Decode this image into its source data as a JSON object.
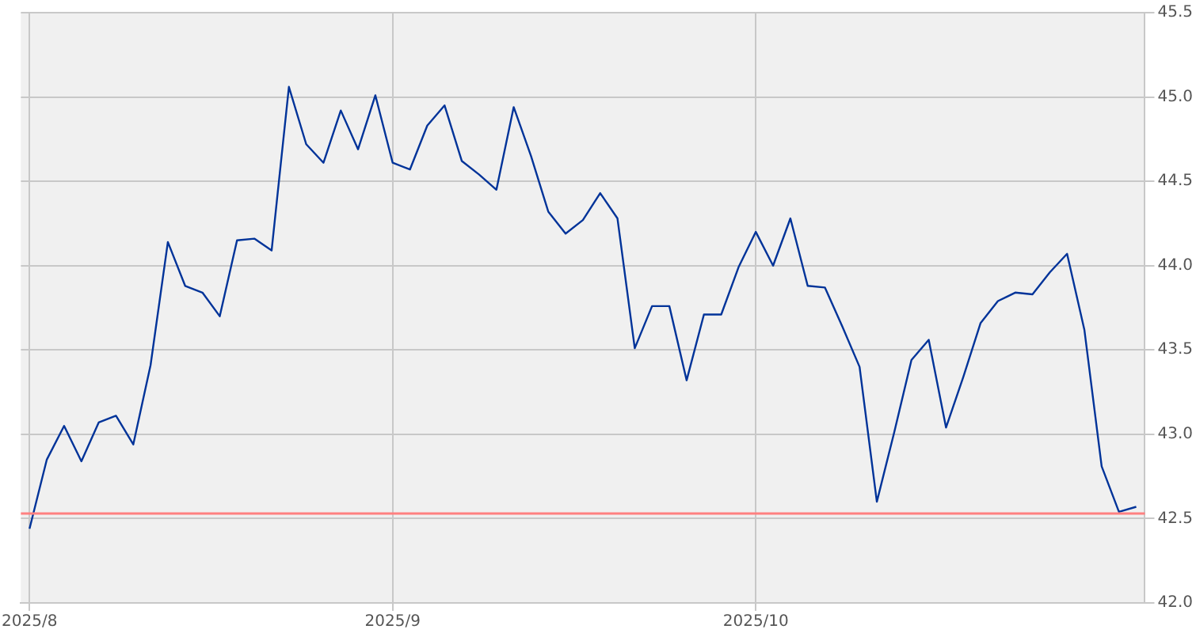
{
  "chart_data": {
    "type": "line",
    "categories": [
      "2025/8",
      null,
      null,
      null,
      null,
      null,
      null,
      null,
      null,
      null,
      null,
      null,
      null,
      null,
      null,
      null,
      null,
      null,
      null,
      null,
      null,
      "2025/9",
      null,
      null,
      null,
      null,
      null,
      null,
      null,
      null,
      null,
      null,
      null,
      null,
      null,
      null,
      null,
      null,
      null,
      null,
      null,
      null,
      "2025/10",
      null,
      null,
      null,
      null,
      null,
      null,
      null,
      null,
      null,
      null,
      null,
      null,
      null,
      null,
      null,
      null,
      null,
      null,
      null,
      null,
      null,
      null
    ],
    "series": [
      {
        "color": "#003399",
        "values": [
          42.44,
          42.85,
          43.05,
          42.84,
          43.07,
          43.11,
          42.94,
          43.41,
          44.14,
          43.88,
          43.84,
          43.7,
          44.15,
          44.16,
          44.09,
          45.06,
          44.72,
          44.61,
          44.92,
          44.69,
          45.01,
          44.61,
          44.57,
          44.83,
          44.95,
          44.62,
          44.54,
          44.45,
          44.94,
          44.65,
          44.32,
          44.19,
          44.27,
          44.43,
          44.28,
          43.51,
          43.76,
          43.76,
          43.32,
          43.71,
          43.71,
          43.99,
          44.2,
          44.0,
          44.28,
          43.88,
          43.87,
          43.64,
          43.4,
          42.6,
          43.01,
          43.44,
          43.56,
          43.04,
          43.34,
          43.66,
          43.79,
          43.84,
          43.83,
          43.96,
          44.07,
          43.62,
          42.81,
          42.54,
          42.57
        ]
      }
    ],
    "ylim": [
      42.0,
      45.5
    ],
    "yticks": [
      {
        "value": 42,
        "label": "42.0"
      },
      {
        "value": 42.5,
        "label": "42.5"
      },
      {
        "value": 43,
        "label": "43.0"
      },
      {
        "value": 43.5,
        "label": "43.5"
      },
      {
        "value": 44,
        "label": "44.0"
      },
      {
        "value": 44.5,
        "label": "44.5"
      },
      {
        "value": 45,
        "label": "45.0"
      },
      {
        "value": 45.5,
        "label": "45.5"
      }
    ],
    "ref_lines": [
      {
        "axis": "y",
        "value": 42.53,
        "color": "#ff8080"
      }
    ],
    "grid": true,
    "legend": false,
    "marker": "none",
    "line_style": "solid"
  }
}
